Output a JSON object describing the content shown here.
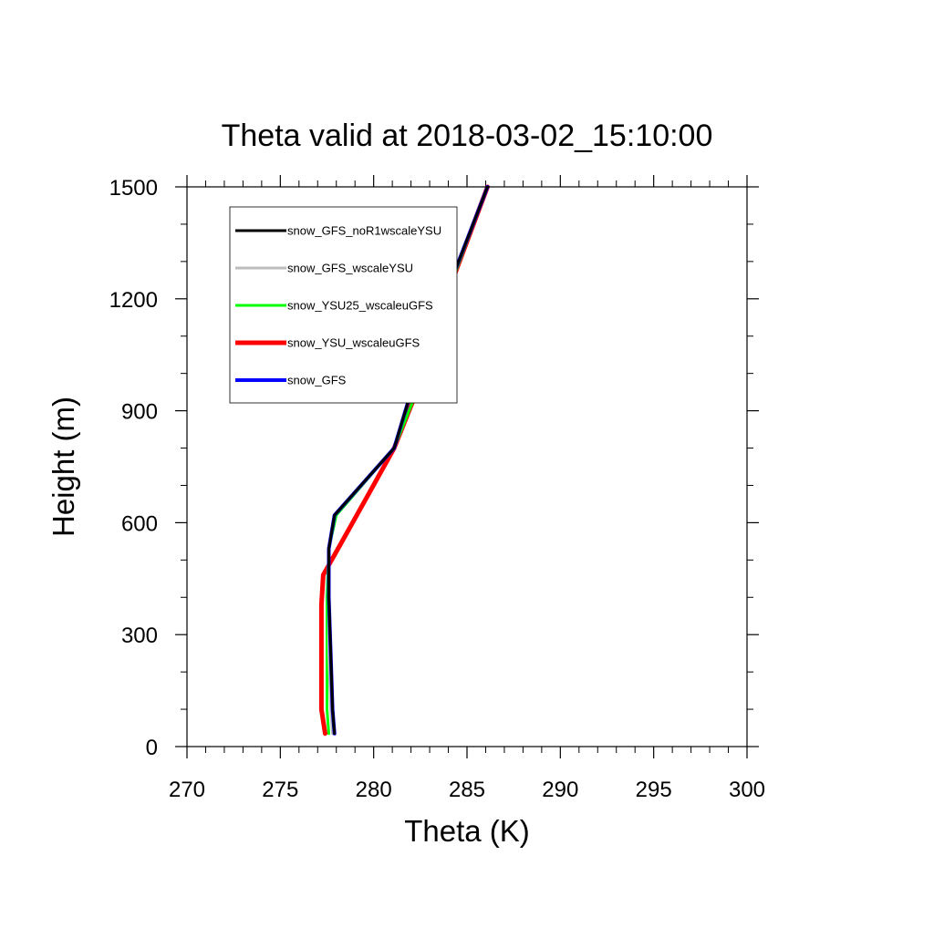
{
  "chart_data": {
    "type": "line",
    "title": "Theta valid at 2018-03-02_15:10:00",
    "xlabel": "Theta (K)",
    "ylabel": "Height (m)",
    "xlim": [
      270,
      300
    ],
    "ylim": [
      0,
      1500
    ],
    "x_ticks": [
      270,
      275,
      280,
      285,
      290,
      295,
      300
    ],
    "y_ticks": [
      0,
      300,
      600,
      900,
      1200,
      1500
    ],
    "x_tick_labels": [
      "270",
      "275",
      "280",
      "285",
      "290",
      "295",
      "300"
    ],
    "y_tick_labels": [
      "0",
      "300",
      "600",
      "900",
      "1200",
      "1500"
    ],
    "x_minor_step": 1,
    "y_minor_step": 100,
    "grid": false,
    "legend_position": "top-left",
    "series": [
      {
        "name": "snow_GFS_noR1wscaleYSU",
        "color": "#000000",
        "points": [
          [
            277.9,
            35
          ],
          [
            277.8,
            100
          ],
          [
            277.7,
            250
          ],
          [
            277.6,
            400
          ],
          [
            277.6,
            530
          ],
          [
            277.9,
            620
          ],
          [
            281.1,
            800
          ],
          [
            282.0,
            950
          ],
          [
            283.0,
            1100
          ],
          [
            286.1,
            1500
          ]
        ]
      },
      {
        "name": "snow_GFS_wscaleYSU",
        "color": "#bdbdbd",
        "points": [
          [
            277.8,
            35
          ],
          [
            277.7,
            100
          ],
          [
            277.6,
            250
          ],
          [
            277.6,
            400
          ],
          [
            277.6,
            530
          ],
          [
            277.9,
            620
          ],
          [
            281.1,
            800
          ],
          [
            282.0,
            950
          ],
          [
            283.0,
            1100
          ],
          [
            286.1,
            1500
          ]
        ]
      },
      {
        "name": "snow_YSU25_wscaleuGFS",
        "color": "#00ff00",
        "points": [
          [
            277.6,
            35
          ],
          [
            277.5,
            100
          ],
          [
            277.5,
            250
          ],
          [
            277.5,
            400
          ],
          [
            277.6,
            530
          ],
          [
            278.0,
            620
          ],
          [
            281.1,
            800
          ],
          [
            282.3,
            950
          ],
          [
            283.1,
            1100
          ],
          [
            286.1,
            1500
          ]
        ]
      },
      {
        "name": "snow_YSU_wscaleuGFS",
        "color": "#ff0000",
        "points": [
          [
            277.4,
            35
          ],
          [
            277.2,
            100
          ],
          [
            277.2,
            250
          ],
          [
            277.2,
            380
          ],
          [
            277.3,
            460
          ],
          [
            278.2,
            540
          ],
          [
            280.1,
            710
          ],
          [
            281.1,
            800
          ],
          [
            282.3,
            950
          ],
          [
            283.1,
            1100
          ],
          [
            286.1,
            1500
          ]
        ]
      },
      {
        "name": "snow_GFS",
        "color": "#0000ff",
        "points": [
          [
            277.9,
            35
          ],
          [
            277.8,
            100
          ],
          [
            277.7,
            250
          ],
          [
            277.6,
            400
          ],
          [
            277.6,
            530
          ],
          [
            277.9,
            620
          ],
          [
            281.1,
            800
          ],
          [
            282.0,
            950
          ],
          [
            283.0,
            1100
          ],
          [
            286.1,
            1500
          ]
        ]
      }
    ]
  }
}
